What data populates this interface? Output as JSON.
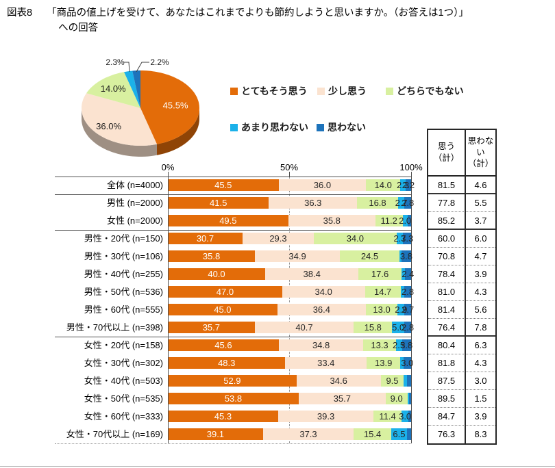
{
  "header": {
    "figure_label": "図表8",
    "title_line1": "「商品の値上げを受けて、あなたはこれまでよりも節約しようと思いますか。（お答えは1つ）」",
    "title_line2": "への回答"
  },
  "legend": {
    "items": [
      {
        "label": "とてもそう思う",
        "icon": "legend-swatch-strongly-agree"
      },
      {
        "label": "少し思う",
        "icon": "legend-swatch-somewhat-agree"
      },
      {
        "label": "どちらでもない",
        "icon": "legend-swatch-neither"
      },
      {
        "label": "あまり思わない",
        "icon": "legend-swatch-somewhat-disagree"
      },
      {
        "label": "思わない",
        "icon": "legend-swatch-disagree"
      }
    ]
  },
  "summary_table": {
    "agree_header": "思う\n（計）",
    "disagree_header": "思わない\n（計）"
  },
  "chart_data": [
    {
      "type": "pie",
      "series_labels": [
        "とてもそう思う",
        "少し思う",
        "どちらでもない",
        "あまり思わない",
        "思わない"
      ],
      "values": [
        45.5,
        36.0,
        14.0,
        2.3,
        2.2
      ],
      "labels": [
        "45.5%",
        "36.0%",
        "14.0%",
        "2.3%",
        "2.2%"
      ],
      "style": "3d-pie, starts at 12 o'clock, clockwise"
    },
    {
      "type": "bar",
      "stacked": true,
      "orientation": "horizontal",
      "xlim": [
        0,
        100
      ],
      "x_ticks": [
        "0%",
        "50%",
        "100%"
      ],
      "gridline_50pct": "dashed",
      "series": [
        "とてもそう思う",
        "少し思う",
        "どちらでもない",
        "あまり思わない",
        "思わない"
      ],
      "colors": [
        "#E36C09",
        "#FBE3D0",
        "#D8F0A0",
        "#1BB1E9",
        "#1D73BB"
      ],
      "rows": [
        {
          "category": "全体 (n=4000)",
          "values": [
            45.5,
            36.0,
            14.0,
            2.3,
            2.2
          ],
          "value_labels": [
            "45.5",
            "36.0",
            "14.0",
            "2.3",
            "2.2"
          ],
          "agree_total": "81.5",
          "disagree_total": "4.6",
          "group_end": true
        },
        {
          "category": "男性 (n=2000)",
          "values": [
            41.5,
            36.3,
            16.8,
            2.7,
            2.8
          ],
          "value_labels": [
            "41.5",
            "36.3",
            "16.8",
            "2.7",
            "2.8"
          ],
          "agree_total": "77.8",
          "disagree_total": "5.5",
          "group_end": false
        },
        {
          "category": "女性 (n=2000)",
          "values": [
            49.5,
            35.8,
            11.2,
            2.0,
            1.7
          ],
          "value_labels": [
            "49.5",
            "35.8",
            "11.2",
            "2.0",
            ""
          ],
          "agree_total": "85.2",
          "disagree_total": "3.7",
          "group_end": true
        },
        {
          "category": "男性・20代 (n=150)",
          "values": [
            30.7,
            29.3,
            34.0,
            2.7,
            3.3
          ],
          "value_labels": [
            "30.7",
            "29.3",
            "34.0",
            "2.7",
            "3.3"
          ],
          "agree_total": "60.0",
          "disagree_total": "6.0",
          "group_end": false
        },
        {
          "category": "男性・30代 (n=106)",
          "values": [
            35.8,
            34.9,
            24.5,
            0.9,
            3.8
          ],
          "value_labels": [
            "35.8",
            "34.9",
            "24.5",
            "",
            "3.8"
          ],
          "agree_total": "70.8",
          "disagree_total": "4.7",
          "group_end": false
        },
        {
          "category": "男性・40代 (n=255)",
          "values": [
            40.0,
            38.4,
            17.6,
            1.5,
            2.4
          ],
          "value_labels": [
            "40.0",
            "38.4",
            "17.6",
            "",
            "2.4"
          ],
          "agree_total": "78.4",
          "disagree_total": "3.9",
          "group_end": false
        },
        {
          "category": "男性・50代 (n=536)",
          "values": [
            47.0,
            34.0,
            14.7,
            1.5,
            2.8
          ],
          "value_labels": [
            "47.0",
            "34.0",
            "14.7",
            "",
            "2.8"
          ],
          "agree_total": "81.0",
          "disagree_total": "4.3",
          "group_end": false
        },
        {
          "category": "男性・60代 (n=555)",
          "values": [
            45.0,
            36.4,
            13.0,
            2.9,
            2.7
          ],
          "value_labels": [
            "45.0",
            "36.4",
            "13.0",
            "2.9",
            "2.7"
          ],
          "agree_total": "81.4",
          "disagree_total": "5.6",
          "group_end": false
        },
        {
          "category": "男性・70代以上 (n=398)",
          "values": [
            35.7,
            40.7,
            15.8,
            5.0,
            2.8
          ],
          "value_labels": [
            "35.7",
            "40.7",
            "15.8",
            "5.0",
            "2.8"
          ],
          "agree_total": "76.4",
          "disagree_total": "7.8",
          "group_end": true
        },
        {
          "category": "女性・20代 (n=158)",
          "values": [
            45.6,
            34.8,
            13.3,
            2.5,
            3.8
          ],
          "value_labels": [
            "45.6",
            "34.8",
            "13.3",
            "2.5",
            "3.8"
          ],
          "agree_total": "80.4",
          "disagree_total": "6.3",
          "group_end": false
        },
        {
          "category": "女性・30代 (n=302)",
          "values": [
            48.3,
            33.4,
            13.9,
            1.3,
            3.0
          ],
          "value_labels": [
            "48.3",
            "33.4",
            "13.9",
            "",
            "3.0"
          ],
          "agree_total": "81.8",
          "disagree_total": "4.3",
          "group_end": false
        },
        {
          "category": "女性・40代 (n=503)",
          "values": [
            52.9,
            34.6,
            9.5,
            1.4,
            1.6
          ],
          "value_labels": [
            "52.9",
            "34.6",
            "9.5",
            "",
            ""
          ],
          "agree_total": "87.5",
          "disagree_total": "3.0",
          "group_end": false
        },
        {
          "category": "女性・50代 (n=535)",
          "values": [
            53.8,
            35.7,
            9.0,
            0.7,
            0.8
          ],
          "value_labels": [
            "53.8",
            "35.7",
            "9.0",
            "",
            ""
          ],
          "agree_total": "89.5",
          "disagree_total": "1.5",
          "group_end": false
        },
        {
          "category": "女性・60代 (n=333)",
          "values": [
            45.3,
            39.3,
            11.4,
            3.0,
            0.9
          ],
          "value_labels": [
            "45.3",
            "39.3",
            "11.4",
            "3.0",
            ""
          ],
          "agree_total": "84.7",
          "disagree_total": "3.9",
          "group_end": false
        },
        {
          "category": "女性・70代以上 (n=169)",
          "values": [
            39.1,
            37.3,
            15.4,
            6.5,
            1.8
          ],
          "value_labels": [
            "39.1",
            "37.3",
            "15.4",
            "6.5",
            ""
          ],
          "agree_total": "76.3",
          "disagree_total": "8.3",
          "group_end": false
        }
      ]
    }
  ]
}
